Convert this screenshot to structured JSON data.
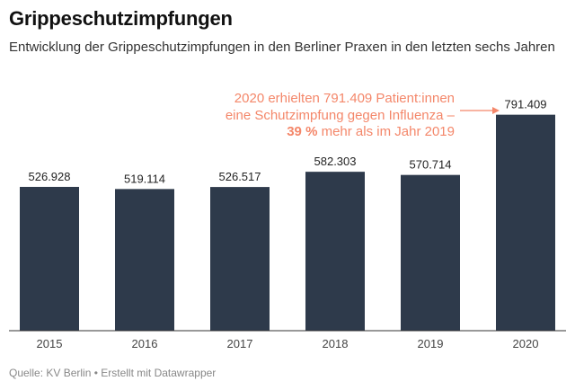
{
  "header": {
    "title": "Grippeschutzimpfungen",
    "subtitle": "Entwicklung der Grippeschutzimpfungen in den Berliner Praxen in den letzten sechs Jahren"
  },
  "annotation": {
    "line1": "2020 erhielten 791.409 Patient:innen",
    "line2": "eine Schutzimpfung gegen Influenza –",
    "line3_bold": "39 %",
    "line3_rest": " mehr als im Jahr 2019"
  },
  "footer": {
    "source": "Quelle: KV Berlin • Erstellt mit Datawrapper"
  },
  "colors": {
    "bar": "#2e3a4b",
    "annotation": "#f4876a",
    "axis": "#333333"
  },
  "chart_data": {
    "type": "bar",
    "categories": [
      "2015",
      "2016",
      "2017",
      "2018",
      "2019",
      "2020"
    ],
    "values": [
      526928,
      519114,
      526517,
      582303,
      570714,
      791409
    ],
    "value_labels": [
      "526.928",
      "519.114",
      "526.517",
      "582.303",
      "570.714",
      "791.409"
    ],
    "title": "Grippeschutzimpfungen",
    "xlabel": "",
    "ylabel": "",
    "ylim": [
      0,
      810000
    ],
    "grid": false,
    "legend": "none"
  }
}
